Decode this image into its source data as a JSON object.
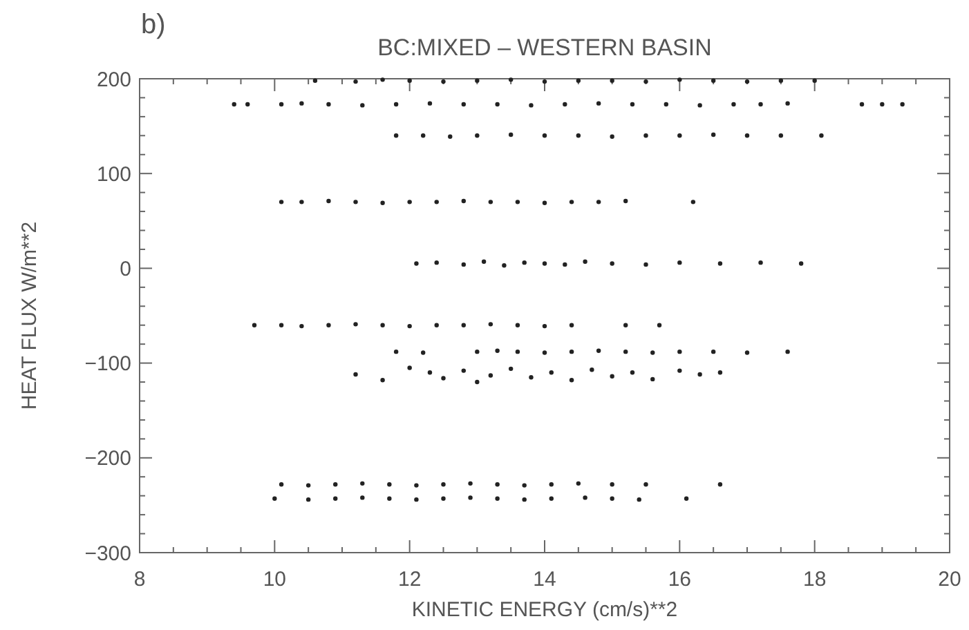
{
  "chart_data": {
    "type": "scatter",
    "title": "BC:MIXED – WESTERN BASIN",
    "xlabel": "KINETIC ENERGY (cm/s)**2",
    "ylabel": "HEAT FLUX W/m**2",
    "annotations": [
      "b)"
    ],
    "xlim": [
      8,
      20
    ],
    "ylim": [
      -300,
      200
    ],
    "xticks": [
      8,
      {
        "value": 8.5,
        "label": null
      },
      {
        "value": 9,
        "label": null
      },
      {
        "value": 9.5,
        "label": null
      },
      10,
      {
        "value": 10.5,
        "label": null
      },
      {
        "value": 11,
        "label": null
      },
      {
        "value": 11.5,
        "label": null
      },
      12,
      {
        "value": 12.5,
        "label": null
      },
      {
        "value": 13,
        "label": null
      },
      {
        "value": 13.5,
        "label": null
      },
      14,
      {
        "value": 14.5,
        "label": null
      },
      {
        "value": 15,
        "label": null
      },
      {
        "value": 15.5,
        "label": null
      },
      16,
      {
        "value": 16.5,
        "label": null
      },
      {
        "value": 17,
        "label": null
      },
      {
        "value": 17.5,
        "label": null
      },
      18,
      {
        "value": 18.5,
        "label": null
      },
      {
        "value": 19,
        "label": null
      },
      {
        "value": 19.5,
        "label": null
      },
      20
    ],
    "yticks": [
      -300,
      {
        "value": -280,
        "label": null
      },
      {
        "value": -260,
        "label": null
      },
      {
        "value": -240,
        "label": null
      },
      {
        "value": -220,
        "label": null
      },
      -200,
      {
        "value": -180,
        "label": null
      },
      {
        "value": -160,
        "label": null
      },
      {
        "value": -140,
        "label": null
      },
      {
        "value": -120,
        "label": null
      },
      -100,
      {
        "value": -80,
        "label": null
      },
      {
        "value": -60,
        "label": null
      },
      {
        "value": -40,
        "label": null
      },
      {
        "value": -20,
        "label": null
      },
      0,
      {
        "value": 20,
        "label": null
      },
      {
        "value": 40,
        "label": null
      },
      {
        "value": 60,
        "label": null
      },
      {
        "value": 80,
        "label": null
      },
      100,
      {
        "value": 120,
        "label": null
      },
      {
        "value": 140,
        "label": null
      },
      {
        "value": 160,
        "label": null
      },
      {
        "value": 180,
        "label": null
      },
      200
    ],
    "grid": false,
    "marker": "circle",
    "series": [
      {
        "color": "#222222",
        "x": [
          10.6,
          11.2,
          11.6,
          12.0,
          12.5,
          13.0,
          13.5,
          14.0,
          14.5,
          15.0,
          15.5,
          16.0,
          16.5,
          17.0,
          17.5,
          18.0,
          9.4,
          9.6,
          10.1,
          10.4,
          10.8,
          11.3,
          11.8,
          12.3,
          12.8,
          13.3,
          13.8,
          14.3,
          14.8,
          15.3,
          15.8,
          16.3,
          16.8,
          17.2,
          17.6,
          18.7,
          19.0,
          19.3,
          11.8,
          12.2,
          12.6,
          13.0,
          13.5,
          14.0,
          14.5,
          15.0,
          15.5,
          16.0,
          16.5,
          17.0,
          17.5,
          18.1,
          10.1,
          10.4,
          10.8,
          11.2,
          11.6,
          12.0,
          12.4,
          12.8,
          13.2,
          13.6,
          14.0,
          14.4,
          14.8,
          15.2,
          16.2,
          12.1,
          12.4,
          12.8,
          13.1,
          13.4,
          13.7,
          14.0,
          14.3,
          14.6,
          15.0,
          15.5,
          16.0,
          16.6,
          17.2,
          17.8,
          9.7,
          10.1,
          10.4,
          10.8,
          11.2,
          11.6,
          12.0,
          12.4,
          12.8,
          13.2,
          13.6,
          14.0,
          14.4,
          15.2,
          15.7,
          11.8,
          12.2,
          13.0,
          13.3,
          13.6,
          14.0,
          14.4,
          14.8,
          15.2,
          15.6,
          16.0,
          16.5,
          17.0,
          17.6,
          11.2,
          11.6,
          12.0,
          12.3,
          12.5,
          12.8,
          13.0,
          13.2,
          13.5,
          13.8,
          14.1,
          14.4,
          14.7,
          15.0,
          15.3,
          15.6,
          16.0,
          16.3,
          16.6,
          10.1,
          10.5,
          10.9,
          11.3,
          11.7,
          12.1,
          12.5,
          12.9,
          13.3,
          13.7,
          14.1,
          14.5,
          15.0,
          15.5,
          16.6,
          10.0,
          10.5,
          10.9,
          11.3,
          11.7,
          12.1,
          12.5,
          12.9,
          13.3,
          13.7,
          14.1,
          14.6,
          15.0,
          15.4,
          16.1
        ],
        "values": [
          198,
          197,
          199,
          198,
          197,
          198,
          199,
          197,
          198,
          198,
          197,
          199,
          198,
          197,
          198,
          198,
          173,
          173,
          173,
          174,
          173,
          172,
          173,
          174,
          173,
          173,
          172,
          173,
          174,
          173,
          173,
          172,
          173,
          173,
          174,
          173,
          173,
          173,
          140,
          140,
          139,
          140,
          141,
          140,
          140,
          139,
          140,
          140,
          141,
          140,
          140,
          140,
          70,
          70,
          71,
          70,
          69,
          70,
          70,
          71,
          70,
          70,
          69,
          70,
          70,
          71,
          70,
          5,
          6,
          4,
          7,
          3,
          6,
          5,
          4,
          7,
          5,
          4,
          6,
          5,
          6,
          5,
          -60,
          -60,
          -61,
          -60,
          -59,
          -60,
          -61,
          -60,
          -60,
          -59,
          -60,
          -61,
          -60,
          -60,
          -60,
          -88,
          -89,
          -88,
          -87,
          -88,
          -89,
          -88,
          -87,
          -88,
          -89,
          -88,
          -88,
          -89,
          -88,
          -112,
          -118,
          -105,
          -110,
          -116,
          -108,
          -120,
          -113,
          -106,
          -115,
          -110,
          -118,
          -107,
          -114,
          -110,
          -117,
          -108,
          -112,
          -110,
          -228,
          -229,
          -228,
          -227,
          -228,
          -229,
          -228,
          -227,
          -228,
          -229,
          -228,
          -227,
          -228,
          -228,
          -228,
          -243,
          -244,
          -243,
          -242,
          -243,
          -244,
          -243,
          -242,
          -243,
          -244,
          -243,
          -242,
          -243,
          -244,
          -243
        ]
      }
    ]
  }
}
